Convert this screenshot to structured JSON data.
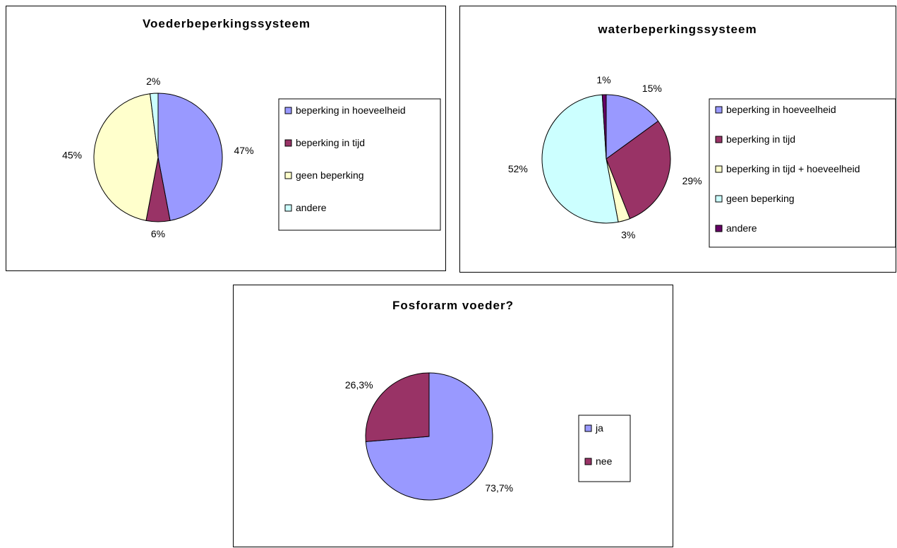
{
  "chart_data": [
    {
      "type": "pie",
      "title": "Voederbeperkingssysteem",
      "categories": [
        "beperking in hoeveelheid",
        "beperking in tijd",
        "geen beperking",
        "andere"
      ],
      "values": [
        47,
        6,
        45,
        2
      ],
      "data_labels": [
        "47%",
        "6%",
        "45%",
        "2%"
      ],
      "colors": [
        "#9999ff",
        "#993366",
        "#ffffcc",
        "#ccffff"
      ],
      "legend": "right"
    },
    {
      "type": "pie",
      "title": "waterbeperkingssysteem",
      "categories": [
        "beperking in hoeveelheid",
        "beperking in tijd",
        "beperking in tijd + hoeveelheid",
        "geen beperking",
        "andere"
      ],
      "values": [
        15,
        29,
        3,
        52,
        1
      ],
      "data_labels": [
        "15%",
        "29%",
        "3%",
        "52%",
        "1%"
      ],
      "colors": [
        "#9999ff",
        "#993366",
        "#ffffcc",
        "#ccffff",
        "#660066"
      ],
      "legend": "right"
    },
    {
      "type": "pie",
      "title": "Fosforarm voeder?",
      "categories": [
        "ja",
        "nee"
      ],
      "values": [
        73.7,
        26.3
      ],
      "data_labels": [
        "73,7%",
        "26,3%"
      ],
      "colors": [
        "#9999ff",
        "#993366"
      ],
      "legend": "right"
    }
  ]
}
